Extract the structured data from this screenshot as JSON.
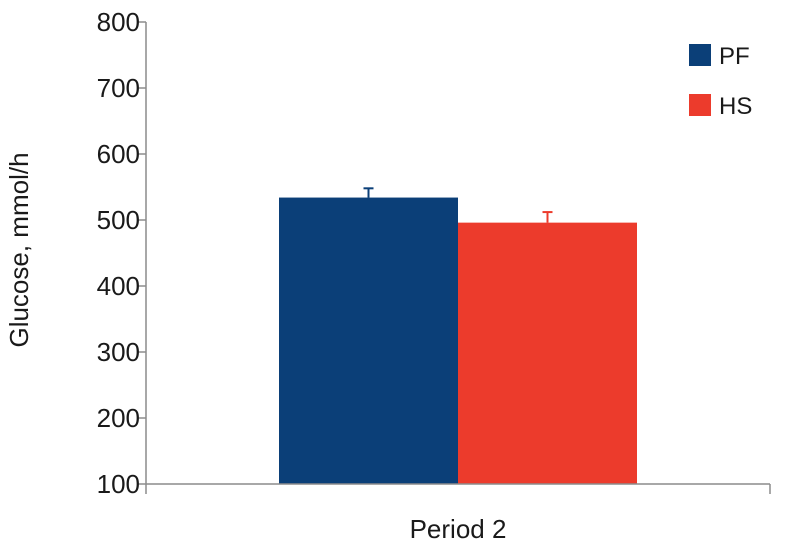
{
  "chart_data": {
    "type": "bar",
    "categories": [
      "Period 2"
    ],
    "series": [
      {
        "name": "PF",
        "values": [
          534
        ],
        "error": [
          14
        ],
        "color": "#0b3f78"
      },
      {
        "name": "HS",
        "values": [
          496
        ],
        "error": [
          16
        ],
        "color": "#ec3b2c"
      }
    ],
    "ylabel": "Glucose, mmol/h",
    "xlabel": "",
    "ylim": [
      100,
      800
    ],
    "yticks": [
      100,
      200,
      300,
      400,
      500,
      600,
      700,
      800
    ],
    "grid": false,
    "legend_position": "top-right"
  }
}
